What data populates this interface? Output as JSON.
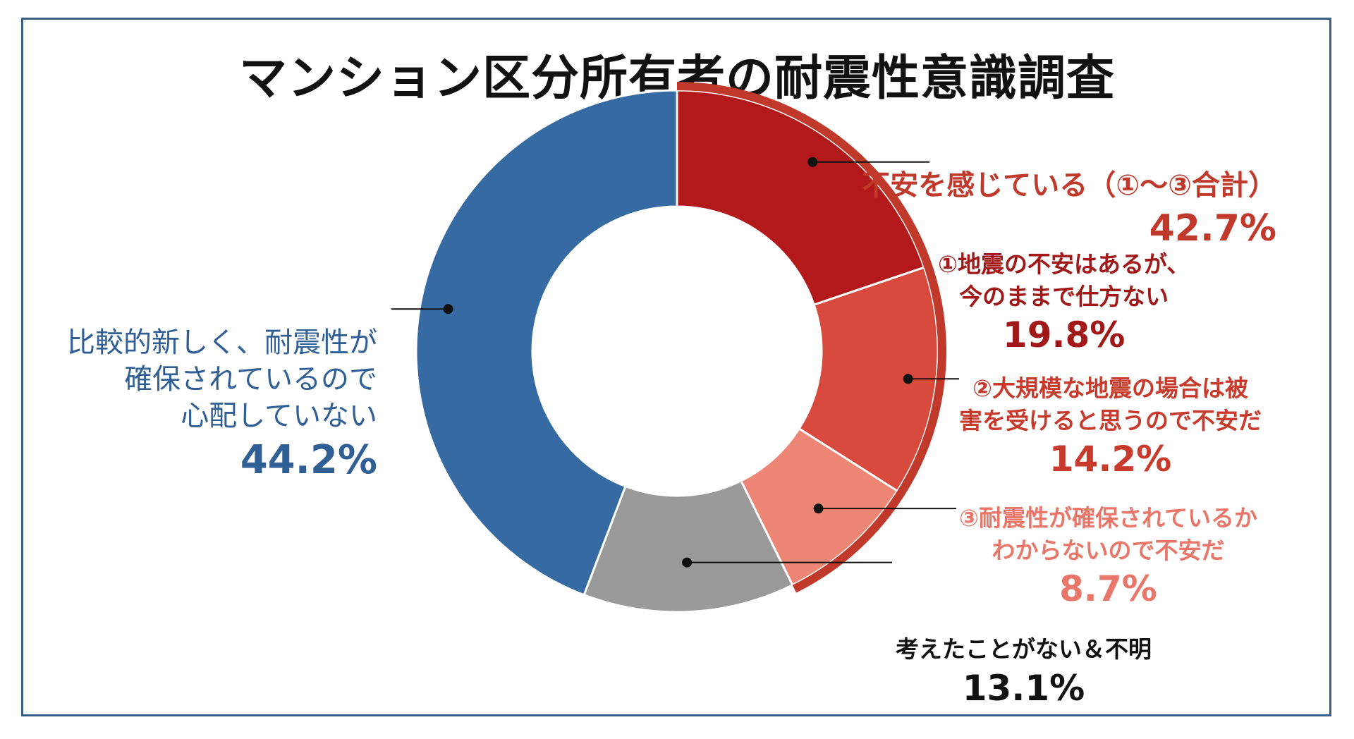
{
  "title": "マンション区分所有者の耐震性意識調査",
  "chart_data": {
    "type": "pie",
    "style": "donut",
    "categories": [
      "①地震の不安はあるが、今のままで仕方ない",
      "②大規模な地震の場合は被害を受けると思うので不安だ",
      "③耐震性が確保されているかわからないので不安だ",
      "考えたことがない＆不明",
      "比較的新しく、耐震性が確保されているので心配していない"
    ],
    "values": [
      19.8,
      14.2,
      8.7,
      13.1,
      44.2
    ],
    "colors": [
      "#b3191a",
      "#d84a3e",
      "#ee8676",
      "#9a9a9a",
      "#356aa2"
    ],
    "group": {
      "label": "不安を感じている（①〜③合計）",
      "value": "42.7%",
      "color": "#c0392b"
    }
  },
  "labels": {
    "group_title": "不安を感じている（①〜③合計）",
    "group_value": "42.7%",
    "s1_line1": "①地震の不安はあるが、",
    "s1_line2": "今のままで仕方ない",
    "s1_value": "19.8%",
    "s2_line1": "②大規模な地震の場合は被",
    "s2_line2": "害を受けると思うので不安だ",
    "s2_value": "14.2%",
    "s3_line1": "③耐震性が確保されているか",
    "s3_line2": "わからないので不安だ",
    "s3_value": "8.7%",
    "s4_line1": "考えたことがない＆不明",
    "s4_value": "13.1%",
    "s5_line1": "比較的新しく、耐震性が",
    "s5_line2": "確保されているので",
    "s5_line3": "心配していない",
    "s5_value": "44.2%"
  }
}
